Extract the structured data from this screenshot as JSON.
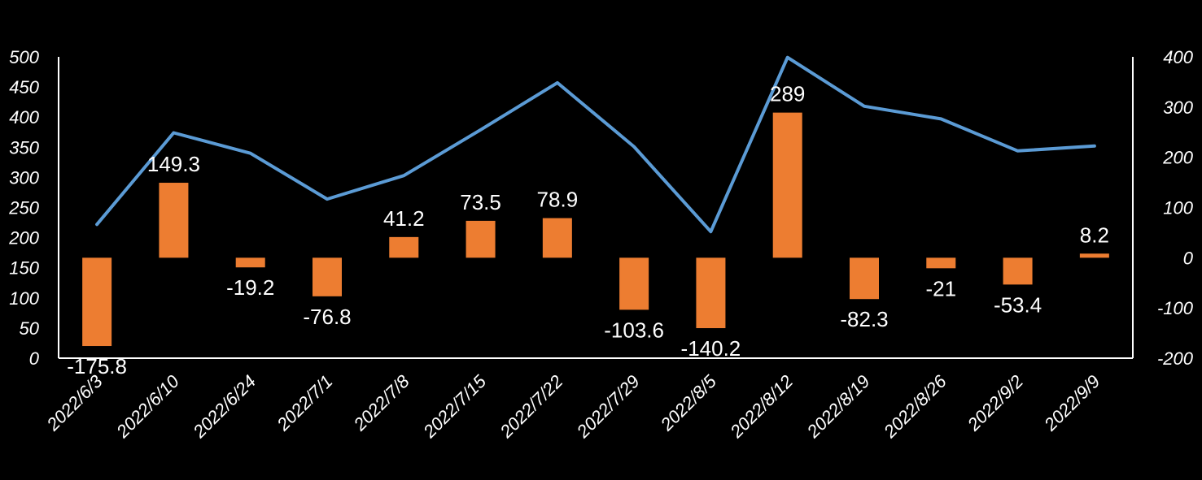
{
  "chart_data": {
    "type": "bar",
    "title": "",
    "xlabel": "",
    "ylabel": "",
    "categories": [
      "2022/6/3",
      "2022/6/10",
      "2022/6/24",
      "2022/7/1",
      "2022/7/8",
      "2022/7/15",
      "2022/7/22",
      "2022/7/29",
      "2022/8/5",
      "2022/8/12",
      "2022/8/19",
      "2022/8/26",
      "2022/9/2",
      "2022/9/9"
    ],
    "series": [
      {
        "type": "line",
        "axis": "left",
        "color": "#5B9BD5",
        "values": [
          222,
          374,
          340,
          264,
          303,
          379,
          457,
          351,
          210,
          499,
          418,
          397,
          344,
          352
        ]
      },
      {
        "type": "bar",
        "axis": "right",
        "color": "#ED7D31",
        "values": [
          -175.8,
          149.3,
          -19.2,
          -76.8,
          41.2,
          73.5,
          78.9,
          -103.6,
          -140.2,
          289,
          -82.3,
          -21,
          -53.4,
          8.2
        ],
        "labels": [
          "-175.8",
          "149.3",
          "-19.2",
          "-76.8",
          "41.2",
          "73.5",
          "78.9",
          "-103.6",
          "-140.2",
          "289",
          "-82.3",
          "-21",
          "-53.4",
          "8.2"
        ]
      }
    ],
    "left_axis": {
      "ylim": [
        0,
        500
      ],
      "ticks": [
        "0",
        "50",
        "100",
        "150",
        "200",
        "250",
        "300",
        "350",
        "400",
        "450",
        "500"
      ]
    },
    "right_axis": {
      "ylim": [
        -200,
        400
      ],
      "ticks": [
        "-200",
        "-100",
        "0",
        "100",
        "200",
        "300",
        "400"
      ]
    },
    "grid": false,
    "legend": "none"
  }
}
